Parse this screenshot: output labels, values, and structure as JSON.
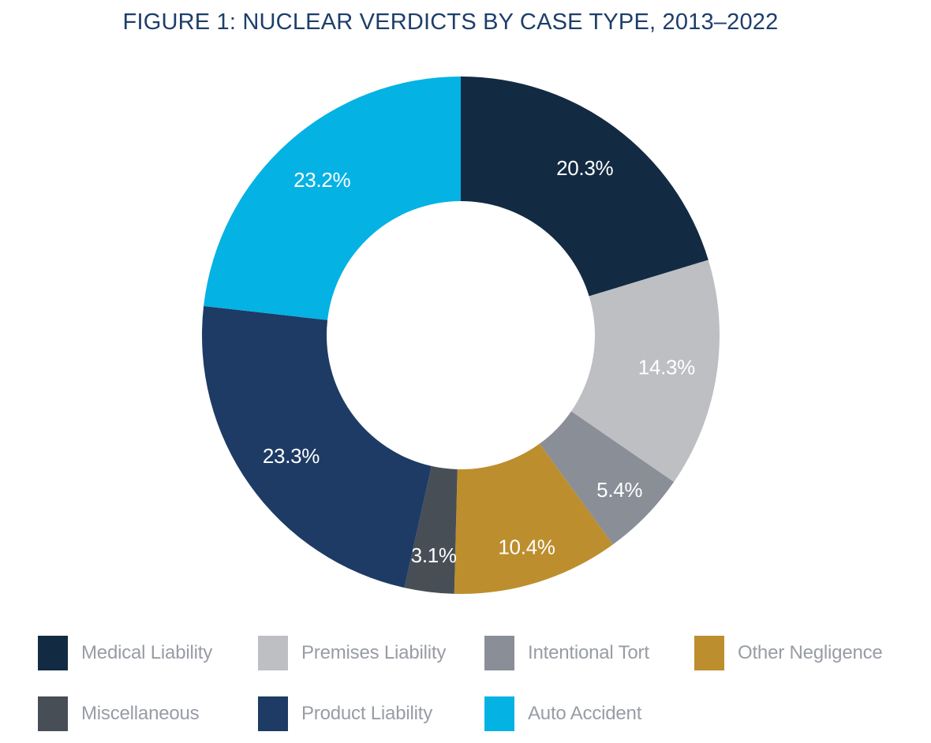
{
  "page": {
    "background": "#ffffff"
  },
  "title": "FIGURE 1: NUCLEAR VERDICTS BY CASE TYPE, 2013–2022",
  "title_color": "#1d3e6b",
  "chart_data": {
    "type": "pie",
    "subtype": "donut",
    "title": "FIGURE 1: NUCLEAR VERDICTS BY CASE TYPE, 2013–2022",
    "start_angle_deg": 0,
    "direction": "clockwise",
    "inner_radius_fraction": 0.518,
    "slices": [
      {
        "label": "Medical Liability",
        "value": 20.3,
        "display": "20.3%",
        "color": "#132a43"
      },
      {
        "label": "Premises Liability",
        "value": 14.3,
        "display": "14.3%",
        "color": "#bdbfc3"
      },
      {
        "label": "Intentional Tort",
        "value": 5.4,
        "display": "5.4%",
        "color": "#8a8e97"
      },
      {
        "label": "Other Negligence",
        "value": 10.4,
        "display": "10.4%",
        "color": "#bd8e2e"
      },
      {
        "label": "Miscellaneous",
        "value": 3.1,
        "display": "3.1%",
        "color": "#484e56"
      },
      {
        "label": "Product Liability",
        "value": 23.3,
        "display": "23.3%",
        "color": "#1d3b64"
      },
      {
        "label": "Auto Accident",
        "value": 23.2,
        "display": "23.2%",
        "color": "#05b2e4"
      }
    ],
    "value_label_color": "#ffffff",
    "legend_position": "bottom",
    "legend_text_color": "#989ca5",
    "grid": false
  }
}
